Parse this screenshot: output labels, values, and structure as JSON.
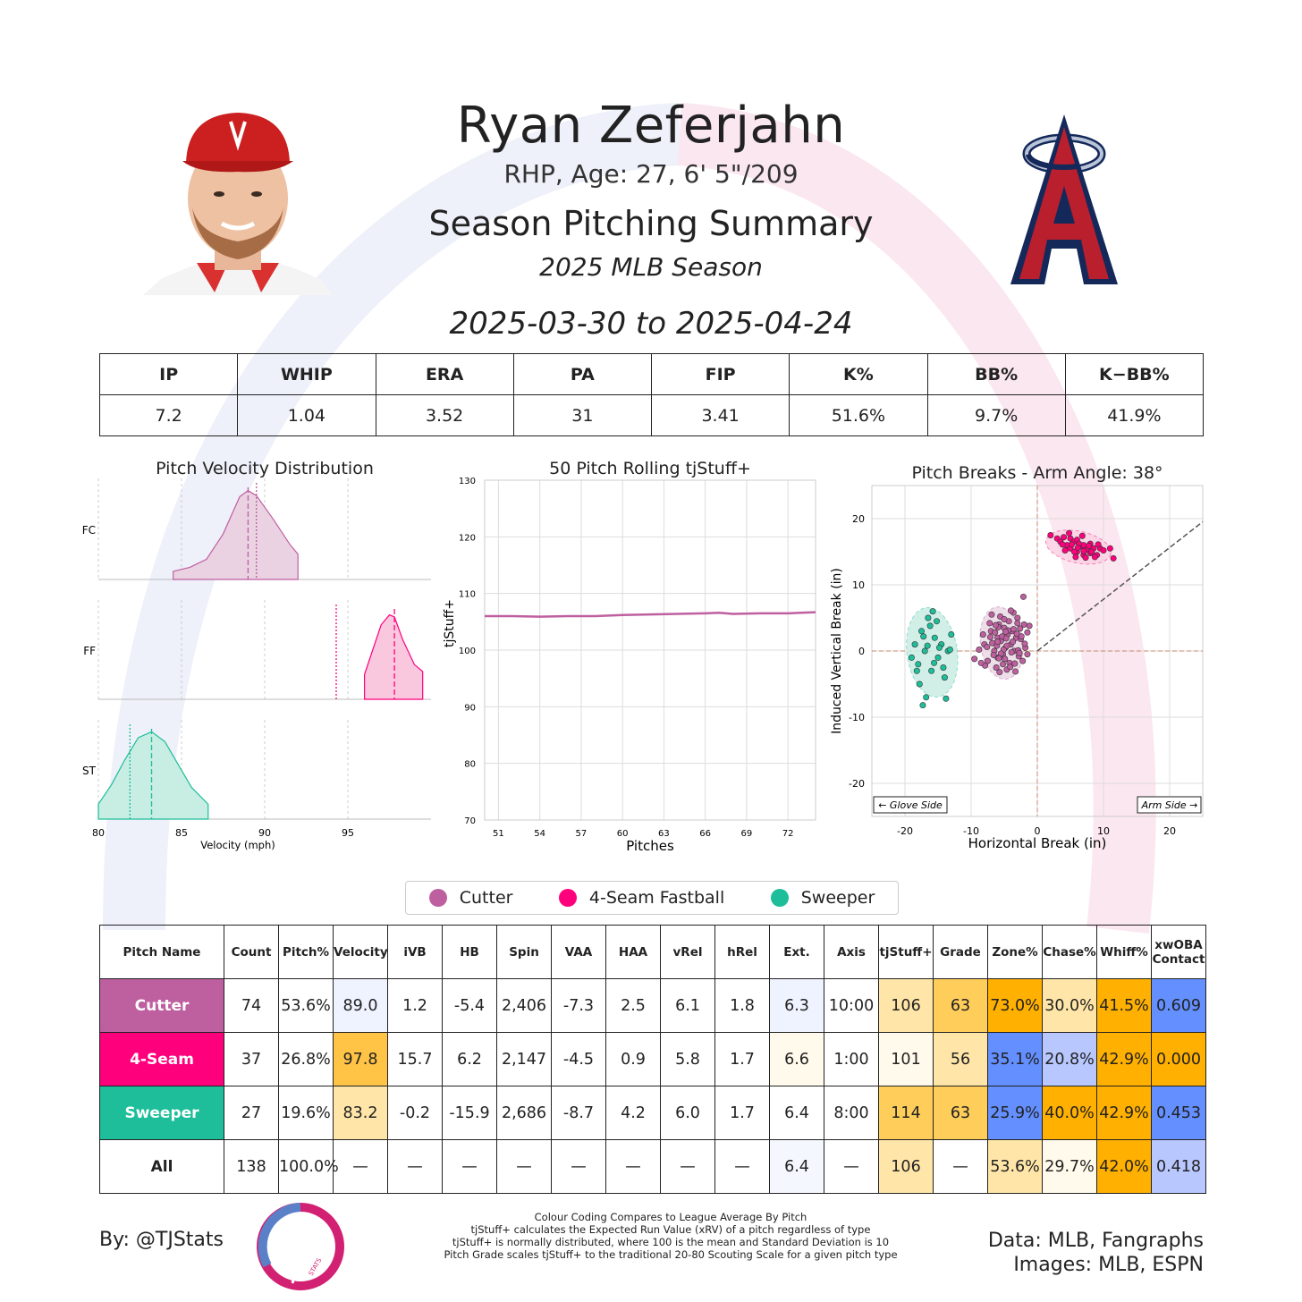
{
  "header": {
    "name": "Ryan Zeferjahn",
    "bio": "RHP, Age: 27, 6' 5\"/209",
    "title": "Season Pitching Summary",
    "season": "2025 MLB Season",
    "dates": "2025-03-30 to 2025-04-24"
  },
  "colors": {
    "cutter": "#be5f9f",
    "fastball": "#ff007d",
    "sweeper": "#1dbe99",
    "blue_high": "#648fff",
    "blue_mid": "#b9c7ff",
    "blue_light": "#eff2ff",
    "orange_high": "#ffb000",
    "orange_mid": "#ffcd5a",
    "orange_light": "#ffe6a8",
    "orange_pale": "#fffaeb"
  },
  "summary": {
    "headers": [
      "IP",
      "WHIP",
      "ERA",
      "PA",
      "FIP",
      "K%",
      "BB%",
      "K−BB%"
    ],
    "values": [
      "7.2",
      "1.04",
      "3.52",
      "31",
      "3.41",
      "51.6%",
      "9.7%",
      "41.9%"
    ]
  },
  "chart_data": [
    {
      "type": "area",
      "title": "Pitch Velocity Distribution",
      "xlabel": "Velocity (mph)",
      "xlim": [
        80,
        100
      ],
      "xticks": [
        "80",
        "85",
        "90",
        "95"
      ],
      "series": [
        {
          "name": "FC",
          "mean": 89.0,
          "league_avg": 89.5,
          "x": [
            84.5,
            85.5,
            86.5,
            87.5,
            88.5,
            89.0,
            89.5,
            90.5,
            91.5,
            92.0
          ],
          "y": [
            0.08,
            0.12,
            0.2,
            0.45,
            0.82,
            0.88,
            0.83,
            0.6,
            0.35,
            0.25
          ]
        },
        {
          "name": "FF",
          "mean": 97.8,
          "league_avg": 94.3,
          "x": [
            96.0,
            96.5,
            97.0,
            97.5,
            97.8,
            98.3,
            99.0,
            99.5
          ],
          "y": [
            0.25,
            0.5,
            0.75,
            0.85,
            0.83,
            0.6,
            0.35,
            0.28
          ]
        },
        {
          "name": "ST",
          "mean": 83.2,
          "league_avg": 81.9,
          "x": [
            80.0,
            80.8,
            81.6,
            82.4,
            83.2,
            84.0,
            84.8,
            85.6,
            86.6
          ],
          "y": [
            0.15,
            0.35,
            0.6,
            0.82,
            0.88,
            0.78,
            0.55,
            0.32,
            0.15
          ]
        }
      ]
    },
    {
      "type": "line",
      "title": "50 Pitch Rolling tjStuff+",
      "xlabel": "Pitches",
      "ylabel": "tjStuff+",
      "xlim": [
        50,
        74
      ],
      "ylim": [
        70,
        130
      ],
      "xticks": [
        51,
        54,
        57,
        60,
        63,
        66,
        69,
        72
      ],
      "yticks": [
        70,
        80,
        90,
        100,
        110,
        120,
        130
      ],
      "x": [
        50,
        52,
        54,
        56,
        58,
        60,
        62,
        64,
        66,
        67,
        68,
        70,
        72,
        74
      ],
      "y": [
        106.0,
        106.0,
        105.9,
        106.0,
        106.0,
        106.2,
        106.3,
        106.4,
        106.5,
        106.6,
        106.4,
        106.5,
        106.5,
        106.7
      ]
    },
    {
      "type": "scatter",
      "title": "Pitch Breaks - Arm Angle: 38°",
      "xlabel": "Horizontal Break (in)",
      "ylabel": "Induced Vertical Break (in)",
      "xlim": [
        -25,
        25
      ],
      "ylim": [
        -25,
        25
      ],
      "xticks": [
        -20,
        -10,
        0,
        10,
        20
      ],
      "yticks": [
        -20,
        -10,
        0,
        10,
        20
      ],
      "annotations": [
        "← Glove Side",
        "Arm Side →"
      ],
      "arm_angle_deg": 38,
      "series": [
        {
          "name": "Cutter",
          "center": [
            -5.4,
            1.2
          ],
          "spread": [
            3.2,
            5.5
          ],
          "points": [
            [
              -8,
              1
            ],
            [
              -7.5,
              -1.5
            ],
            [
              -7,
              3
            ],
            [
              -6.5,
              0
            ],
            [
              -6,
              2
            ],
            [
              -6,
              -1
            ],
            [
              -5.8,
              4
            ],
            [
              -5.5,
              1.5
            ],
            [
              -5.2,
              -0.5
            ],
            [
              -5,
              3.5
            ],
            [
              -4.8,
              0.5
            ],
            [
              -4.5,
              2.5
            ],
            [
              -4.2,
              -1.8
            ],
            [
              -4,
              1
            ],
            [
              -3.8,
              3
            ],
            [
              -3.5,
              0
            ],
            [
              -3.2,
              2
            ],
            [
              -3,
              5
            ],
            [
              -2.8,
              -0.8
            ],
            [
              -2.5,
              1.8
            ],
            [
              -2,
              4
            ],
            [
              -1.8,
              0.5
            ],
            [
              -1.5,
              2.8
            ],
            [
              -7.2,
              4.2
            ],
            [
              -6.8,
              1.2
            ],
            [
              -6.2,
              -2.5
            ],
            [
              -5.6,
              5.2
            ],
            [
              -4.6,
              -2.8
            ],
            [
              -3.6,
              5.8
            ],
            [
              -2.2,
              -1.5
            ],
            [
              -1.5,
              -0.5
            ],
            [
              -8.8,
              0.2
            ],
            [
              -9.5,
              -1.2
            ],
            [
              -8.2,
              2.5
            ],
            [
              -5.1,
              0.2
            ],
            [
              -4.3,
              4.5
            ],
            [
              -3.9,
              -0.2
            ],
            [
              -6.4,
              2.8
            ],
            [
              -2.6,
              3.4
            ],
            [
              -4.9,
              -1.2
            ],
            [
              -7.9,
              -2.2
            ],
            [
              -2.1,
              8.2
            ],
            [
              -5.7,
              -3.2
            ],
            [
              -3.3,
              -3.1
            ],
            [
              -6.9,
              5.5
            ],
            [
              -4.0,
              6.1
            ],
            [
              -5.3,
              2.2
            ],
            [
              -3.7,
              1.4
            ],
            [
              -6.1,
              0.8
            ],
            [
              -4.4,
              3.1
            ],
            [
              -2.9,
              0.1
            ],
            [
              -1.2,
              3.8
            ],
            [
              -7.6,
              0.6
            ],
            [
              -5.9,
              3.6
            ],
            [
              -4.7,
              1.9
            ],
            [
              -3.1,
              2.6
            ],
            [
              -6.6,
              -0.6
            ],
            [
              -5.0,
              4.8
            ],
            [
              -3.4,
              -1.9
            ],
            [
              -2.4,
              2.2
            ],
            [
              -8.5,
              -1.8
            ],
            [
              -4.1,
              -2.4
            ],
            [
              -5.5,
              -0.4
            ],
            [
              -6.3,
              3.9
            ],
            [
              -3.0,
              4.2
            ],
            [
              -4.6,
              0.8
            ],
            [
              -1.9,
              1.1
            ],
            [
              -7.1,
              2.1
            ],
            [
              -5.2,
              -2.0
            ],
            [
              -3.6,
              3.3
            ],
            [
              -6.0,
              1.4
            ],
            [
              -4.8,
              2.9
            ],
            [
              -2.7,
              -0.3
            ],
            [
              -5.8,
              -1.1
            ]
          ]
        },
        {
          "name": "4-Seam Fastball",
          "center": [
            6.2,
            15.7
          ],
          "spread": [
            5,
            2.4
          ],
          "points": [
            [
              2,
              17.5
            ],
            [
              3,
              17
            ],
            [
              3.5,
              16.5
            ],
            [
              4,
              17.2
            ],
            [
              4.5,
              16
            ],
            [
              5,
              15.5
            ],
            [
              5,
              17
            ],
            [
              5.5,
              16.5
            ],
            [
              6,
              15
            ],
            [
              6,
              16.8
            ],
            [
              6.5,
              15.8
            ],
            [
              7,
              14.5
            ],
            [
              7,
              16
            ],
            [
              7.5,
              15.3
            ],
            [
              8,
              14.8
            ],
            [
              8,
              16.2
            ],
            [
              8.5,
              15.5
            ],
            [
              9,
              14.5
            ],
            [
              9.5,
              15.5
            ],
            [
              10,
              15.2
            ],
            [
              11,
              15.5
            ],
            [
              11.5,
              14
            ],
            [
              4.2,
              15.2
            ],
            [
              5.8,
              14.2
            ],
            [
              6.8,
              17.4
            ],
            [
              7.8,
              15.9
            ],
            [
              9.2,
              16.1
            ],
            [
              5.2,
              16.1
            ],
            [
              6.3,
              16.2
            ],
            [
              7.3,
              14.1
            ],
            [
              8.2,
              15.0
            ],
            [
              4.8,
              17.8
            ],
            [
              6.1,
              15.6
            ],
            [
              7.0,
              15.1
            ],
            [
              8.7,
              14.2
            ],
            [
              3.8,
              16.1
            ],
            [
              5.6,
              15.0
            ]
          ]
        },
        {
          "name": "Sweeper",
          "center": [
            -15.9,
            -0.2
          ],
          "spread": [
            3.8,
            6.8
          ],
          "points": [
            [
              -19,
              -1
            ],
            [
              -18.5,
              1
            ],
            [
              -18,
              -2
            ],
            [
              -17.5,
              3
            ],
            [
              -17,
              0
            ],
            [
              -16.5,
              5
            ],
            [
              -16,
              -3
            ],
            [
              -15.5,
              2
            ],
            [
              -15,
              -1
            ],
            [
              -14.5,
              1
            ],
            [
              -14,
              -4
            ],
            [
              -13.5,
              0
            ],
            [
              -13,
              2.5
            ],
            [
              -17.8,
              -5
            ],
            [
              -16.2,
              3.8
            ],
            [
              -15.2,
              4.5
            ],
            [
              -14.2,
              -2.5
            ],
            [
              -18.2,
              -3
            ],
            [
              -17.2,
              2.2
            ],
            [
              -16.8,
              -7
            ],
            [
              -13.8,
              -7.2
            ],
            [
              -15.8,
              6
            ],
            [
              -14.8,
              0.5
            ],
            [
              -17.3,
              -8.2
            ],
            [
              -13.2,
              0.2
            ],
            [
              -16.6,
              0.8
            ],
            [
              -15.6,
              -1.8
            ]
          ]
        }
      ]
    }
  ],
  "legend": {
    "items": [
      {
        "label": "Cutter",
        "color": "#be5f9f"
      },
      {
        "label": "4-Seam Fastball",
        "color": "#ff007d"
      },
      {
        "label": "Sweeper",
        "color": "#1dbe99"
      }
    ]
  },
  "pitch_table": {
    "headers": [
      "Pitch Name",
      "Count",
      "Pitch%",
      "Velocity",
      "iVB",
      "HB",
      "Spin",
      "VAA",
      "HAA",
      "vRel",
      "hRel",
      "Ext.",
      "Axis",
      "tjStuff+",
      "Grade",
      "Zone%",
      "Chase%",
      "Whiff%",
      "xwOBA Contact"
    ],
    "rows": [
      {
        "cells": [
          "Cutter",
          "74",
          "53.6%",
          "89.0",
          "1.2",
          "-5.4",
          "2,406",
          "-7.3",
          "2.5",
          "6.1",
          "1.8",
          "6.3",
          "10:00",
          "106",
          "63",
          "73.0%",
          "30.0%",
          "41.5%",
          "0.609"
        ],
        "name_color": "#be5f9f",
        "cell_colors": [
          null,
          null,
          null,
          "#eff2ff",
          null,
          null,
          null,
          null,
          null,
          null,
          null,
          "#eff2ff",
          null,
          "#ffe6a8",
          "#ffcd5a",
          "#ffb000",
          "#ffe6a8",
          "#ffb000",
          "#648fff"
        ]
      },
      {
        "cells": [
          "4-Seam",
          "37",
          "26.8%",
          "97.8",
          "15.7",
          "6.2",
          "2,147",
          "-4.5",
          "0.9",
          "5.8",
          "1.7",
          "6.6",
          "1:00",
          "101",
          "56",
          "35.1%",
          "20.8%",
          "42.9%",
          "0.000"
        ],
        "name_color": "#ff007d",
        "cell_colors": [
          null,
          null,
          null,
          "#ffc446",
          null,
          null,
          null,
          null,
          null,
          null,
          null,
          "#fffaeb",
          null,
          "#fffaeb",
          "#ffe6a8",
          "#648fff",
          "#b9c7ff",
          "#ffb000",
          "#ffb000"
        ]
      },
      {
        "cells": [
          "Sweeper",
          "27",
          "19.6%",
          "83.2",
          "-0.2",
          "-15.9",
          "2,686",
          "-8.7",
          "4.2",
          "6.0",
          "1.7",
          "6.4",
          "8:00",
          "114",
          "63",
          "25.9%",
          "40.0%",
          "42.9%",
          "0.453"
        ],
        "name_color": "#1dbe99",
        "cell_colors": [
          null,
          null,
          null,
          "#ffe6a8",
          null,
          null,
          null,
          null,
          null,
          null,
          null,
          null,
          null,
          "#ffcd5a",
          "#ffcd5a",
          "#648fff",
          "#ffb000",
          "#ffb000",
          "#648fff"
        ]
      },
      {
        "cells": [
          "All",
          "138",
          "100.0%",
          "—",
          "—",
          "—",
          "—",
          "—",
          "—",
          "—",
          "—",
          "6.4",
          "—",
          "106",
          "—",
          "53.6%",
          "29.7%",
          "42.0%",
          "0.418"
        ],
        "name_color": null,
        "cell_colors": [
          null,
          null,
          null,
          null,
          null,
          null,
          null,
          null,
          null,
          null,
          null,
          "#f5f7ff",
          null,
          "#ffe6a8",
          null,
          "#ffe6a8",
          "#fffaeb",
          "#ffb000",
          "#b9c7ff"
        ]
      }
    ]
  },
  "footer": {
    "by": "By: @TJStats",
    "notes": [
      "Colour Coding Compares to League Average By Pitch",
      "tjStuff+ calculates the Expected Run Value (xRV) of a pitch regardless of type",
      "tjStuff+ is normally distributed, where 100 is the mean and Standard Deviation is 10",
      "Pitch Grade scales tjStuff+ to the traditional 20-80 Scouting Scale for a given pitch type"
    ],
    "data": "Data: MLB, Fangraphs",
    "images": "Images: MLB, ESPN",
    "logo_text": "STATS"
  }
}
